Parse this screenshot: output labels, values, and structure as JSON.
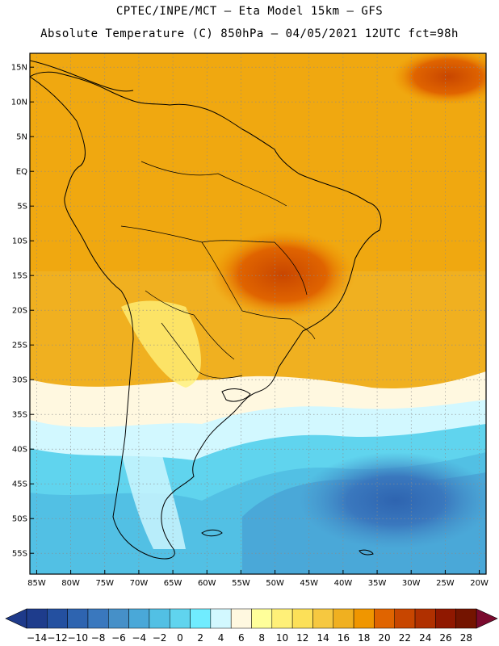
{
  "header": {
    "line1": "CPTEC/INPE/MCT –  Eta Model 15km – GFS",
    "line2": "Absolute Temperature (C) 850hPa – 04/05/2021 12UTC fct=98h"
  },
  "map": {
    "lat_ticks": [
      "15N",
      "10N",
      "5N",
      "EQ",
      "5S",
      "10S",
      "15S",
      "20S",
      "25S",
      "30S",
      "35S",
      "40S",
      "45S",
      "50S",
      "55S"
    ],
    "lon_ticks": [
      "85W",
      "80W",
      "75W",
      "70W",
      "65W",
      "60W",
      "55W",
      "50W",
      "45W",
      "40W",
      "35W",
      "30W",
      "25W",
      "20W"
    ],
    "lon_range": [
      -86,
      -19
    ],
    "lat_range": [
      -58,
      17
    ]
  },
  "colorbar": {
    "labels": [
      "-14",
      "-12",
      "-10",
      "-8",
      "-6",
      "-4",
      "-2",
      "0",
      "2",
      "4",
      "6",
      "8",
      "10",
      "12",
      "14",
      "16",
      "18",
      "20",
      "22",
      "24",
      "26",
      "28"
    ],
    "colors": [
      "#1e3c8c",
      "#2450a0",
      "#2e64b0",
      "#3a78be",
      "#4690c8",
      "#4aa8d8",
      "#52c0e4",
      "#60d4ee",
      "#70ecff",
      "#d2f8ff",
      "#fff8e0",
      "#ffff9a",
      "#fff078",
      "#fce058",
      "#f6c840",
      "#f0b020",
      "#f09600",
      "#e06400",
      "#c84600",
      "#b03000",
      "#901800",
      "#741400"
    ],
    "min_color": "#1e3a8a",
    "max_color": "#7a0a2e"
  }
}
